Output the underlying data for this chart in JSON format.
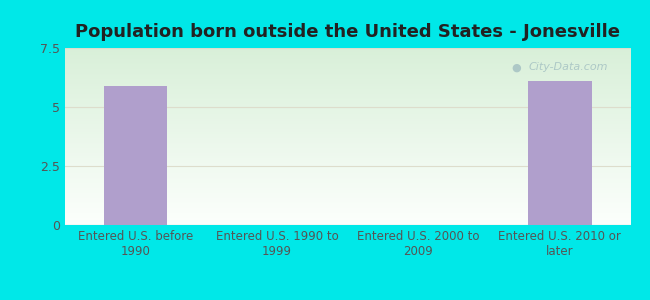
{
  "title": "Population born outside the United States - Jonesville",
  "categories": [
    "Entered U.S. before\n1990",
    "Entered U.S. 1990 to\n1999",
    "Entered U.S. 2000 to\n2009",
    "Entered U.S. 2010 or\nlater"
  ],
  "values": [
    5.9,
    0,
    0,
    6.1
  ],
  "bar_color": "#b09fcc",
  "ylim": [
    0,
    7.5
  ],
  "yticks": [
    0,
    2.5,
    5,
    7.5
  ],
  "background_outer": "#00e8e8",
  "title_fontsize": 13,
  "tick_fontsize": 9,
  "watermark_text": "City-Data.com",
  "watermark_color": "#a8c4c4",
  "grid_color": "#ddddcc",
  "axis_color": "#aaaaaa"
}
